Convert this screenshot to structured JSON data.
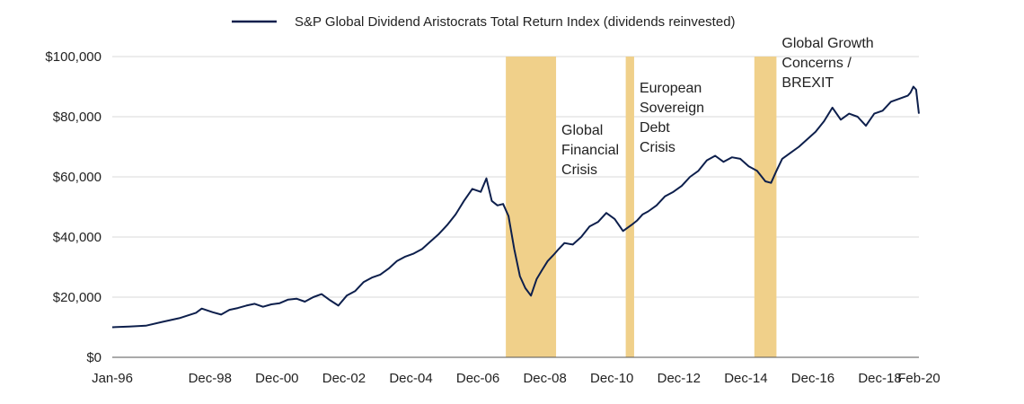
{
  "chart_data": {
    "type": "line",
    "title": "",
    "xlabel": "",
    "ylabel": "",
    "legend": {
      "position": "top-center",
      "entries": [
        "S&P Global Dividend Aristocrats Total Return Index (dividends reinvested)"
      ]
    },
    "x_tick_labels": [
      "Jan-96",
      "Dec-98",
      "Dec-00",
      "Dec-02",
      "Dec-04",
      "Dec-06",
      "Dec-08",
      "Dec-10",
      "Dec-12",
      "Dec-14",
      "Dec-16",
      "Dec-18",
      "Feb-20"
    ],
    "x_tick_years": [
      1996.0,
      1998.917,
      2000.917,
      2002.917,
      2004.917,
      2006.917,
      2008.917,
      2010.917,
      2012.917,
      2014.917,
      2016.917,
      2018.917,
      2020.083
    ],
    "xlim": [
      1996.0,
      2020.083
    ],
    "y_tick_labels": [
      "$0",
      "$20,000",
      "$40,000",
      "$60,000",
      "$80,000",
      "$100,000"
    ],
    "y_tick_values": [
      0,
      20000,
      40000,
      60000,
      80000,
      100000
    ],
    "ylim": [
      0,
      100000
    ],
    "grid": "horizontal",
    "series": [
      {
        "name": "S&P Global Dividend Aristocrats Total Return Index (dividends reinvested)",
        "color": "#0d1f4c",
        "x": [
          1996.0,
          1996.5,
          1997.0,
          1997.5,
          1998.0,
          1998.5,
          1998.67,
          1999.0,
          1999.25,
          1999.5,
          1999.75,
          2000.0,
          2000.25,
          2000.5,
          2000.75,
          2001.0,
          2001.25,
          2001.5,
          2001.75,
          2002.0,
          2002.25,
          2002.5,
          2002.75,
          2003.0,
          2003.25,
          2003.5,
          2003.75,
          2004.0,
          2004.25,
          2004.5,
          2004.75,
          2005.0,
          2005.25,
          2005.5,
          2005.75,
          2006.0,
          2006.25,
          2006.5,
          2006.75,
          2007.0,
          2007.17,
          2007.33,
          2007.5,
          2007.67,
          2007.83,
          2008.0,
          2008.17,
          2008.33,
          2008.5,
          2008.67,
          2008.83,
          2009.0,
          2009.17,
          2009.33,
          2009.5,
          2009.75,
          2010.0,
          2010.25,
          2010.5,
          2010.75,
          2011.0,
          2011.25,
          2011.5,
          2011.67,
          2011.83,
          2012.0,
          2012.25,
          2012.5,
          2012.75,
          2013.0,
          2013.25,
          2013.5,
          2013.75,
          2014.0,
          2014.25,
          2014.5,
          2014.75,
          2015.0,
          2015.25,
          2015.5,
          2015.67,
          2015.83,
          2016.0,
          2016.25,
          2016.5,
          2016.75,
          2017.0,
          2017.25,
          2017.5,
          2017.75,
          2018.0,
          2018.25,
          2018.5,
          2018.75,
          2019.0,
          2019.25,
          2019.5,
          2019.75,
          2019.83,
          2019.92,
          2020.0,
          2020.083
        ],
        "values": [
          10000,
          10200,
          10500,
          11800,
          13000,
          14800,
          16200,
          15000,
          14200,
          15800,
          16400,
          17200,
          17800,
          16800,
          17600,
          18000,
          19200,
          19500,
          18500,
          20000,
          21000,
          19000,
          17200,
          20500,
          22000,
          25000,
          26500,
          27500,
          29500,
          32000,
          33500,
          34500,
          36000,
          38500,
          41000,
          44000,
          47500,
          52000,
          56000,
          55000,
          59500,
          52000,
          50500,
          51000,
          47000,
          36000,
          27000,
          23000,
          20500,
          26000,
          29000,
          32000,
          34000,
          36000,
          38000,
          37500,
          40000,
          43500,
          45000,
          48000,
          46000,
          42000,
          44000,
          45500,
          47500,
          48500,
          50500,
          53500,
          55000,
          57000,
          60000,
          62000,
          65500,
          67000,
          65000,
          66500,
          66000,
          63500,
          62000,
          58500,
          58000,
          62000,
          66000,
          68000,
          70000,
          72500,
          75000,
          78500,
          83000,
          79000,
          81000,
          80000,
          77000,
          81000,
          82000,
          85000,
          86000,
          87000,
          88000,
          90000,
          89000,
          81000
        ]
      }
    ],
    "shaded_periods": [
      {
        "label_lines": [
          "Global",
          "Financial",
          "Crisis"
        ],
        "start": 2007.75,
        "end": 2009.25,
        "color": "#f0d08a"
      },
      {
        "label_lines": [
          "European",
          "Sovereign",
          "Debt",
          "Crisis"
        ],
        "start": 2011.33,
        "end": 2011.58,
        "color": "#f0d08a"
      },
      {
        "label_lines": [
          "Global Growth",
          "Concerns /",
          "BREXIT"
        ],
        "start": 2015.17,
        "end": 2015.83,
        "color": "#f0d08a"
      }
    ],
    "axis_color": "#555555",
    "grid_color": "#d9d9d9"
  }
}
